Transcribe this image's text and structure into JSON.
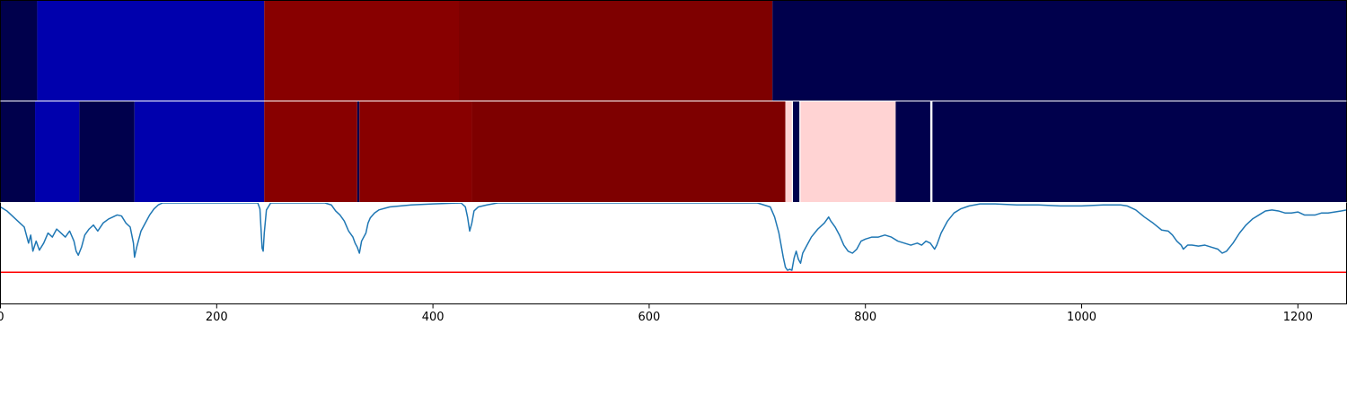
{
  "chart_data": {
    "type": "heatmap",
    "x_axis": {
      "xlim": [
        0,
        1245
      ],
      "ticks": [
        0,
        200,
        400,
        600,
        800,
        1000,
        1200
      ],
      "tick_labels": [
        "0",
        "200",
        "400",
        "600",
        "800",
        "1000",
        "1200"
      ]
    },
    "segment_rows": [
      {
        "segments": [
          {
            "start": 0,
            "end": 34,
            "color": "#00004c"
          },
          {
            "start": 34,
            "end": 244,
            "color": "#0000ad"
          },
          {
            "start": 244,
            "end": 424,
            "color": "#880000"
          },
          {
            "start": 424,
            "end": 714,
            "color": "#7e0000"
          },
          {
            "start": 714,
            "end": 1245,
            "color": "#00004c"
          }
        ]
      },
      {
        "segments": [
          {
            "start": 0,
            "end": 32,
            "color": "#00004c"
          },
          {
            "start": 32,
            "end": 73,
            "color": "#0000ad"
          },
          {
            "start": 73,
            "end": 124,
            "color": "#00004c"
          },
          {
            "start": 124,
            "end": 244,
            "color": "#0000ad"
          },
          {
            "start": 244,
            "end": 330,
            "color": "#880000"
          },
          {
            "start": 330,
            "end": 332,
            "color": "#00004c"
          },
          {
            "start": 332,
            "end": 436,
            "color": "#880000"
          },
          {
            "start": 436,
            "end": 726,
            "color": "#7e0000"
          },
          {
            "start": 726,
            "end": 732,
            "color": "#ffd3d3"
          },
          {
            "start": 732,
            "end": 733,
            "color": "#ffffff"
          },
          {
            "start": 733,
            "end": 739,
            "color": "#00004c"
          },
          {
            "start": 739,
            "end": 740,
            "color": "#ffffff"
          },
          {
            "start": 740,
            "end": 828,
            "color": "#ffd3d3"
          },
          {
            "start": 828,
            "end": 860,
            "color": "#00004c"
          },
          {
            "start": 860,
            "end": 862,
            "color": "#ffffff"
          },
          {
            "start": 862,
            "end": 1245,
            "color": "#00004c"
          }
        ]
      }
    ],
    "line_panel": {
      "ylim": [
        0,
        1
      ],
      "threshold": {
        "value": 0.31,
        "color": "#ff0000"
      },
      "series_color": "#1f77b4",
      "points": [
        [
          0,
          0.96
        ],
        [
          6,
          0.92
        ],
        [
          12,
          0.86
        ],
        [
          18,
          0.8
        ],
        [
          22,
          0.76
        ],
        [
          26,
          0.6
        ],
        [
          28,
          0.68
        ],
        [
          30,
          0.52
        ],
        [
          33,
          0.62
        ],
        [
          36,
          0.53
        ],
        [
          40,
          0.6
        ],
        [
          44,
          0.7
        ],
        [
          48,
          0.66
        ],
        [
          52,
          0.74
        ],
        [
          56,
          0.7
        ],
        [
          60,
          0.66
        ],
        [
          64,
          0.72
        ],
        [
          68,
          0.62
        ],
        [
          70,
          0.52
        ],
        [
          72,
          0.48
        ],
        [
          75,
          0.56
        ],
        [
          78,
          0.68
        ],
        [
          82,
          0.74
        ],
        [
          86,
          0.78
        ],
        [
          90,
          0.72
        ],
        [
          95,
          0.8
        ],
        [
          100,
          0.84
        ],
        [
          104,
          0.86
        ],
        [
          108,
          0.88
        ],
        [
          112,
          0.87
        ],
        [
          116,
          0.8
        ],
        [
          120,
          0.76
        ],
        [
          123,
          0.6
        ],
        [
          124,
          0.46
        ],
        [
          126,
          0.56
        ],
        [
          130,
          0.72
        ],
        [
          134,
          0.8
        ],
        [
          138,
          0.88
        ],
        [
          142,
          0.94
        ],
        [
          146,
          0.98
        ],
        [
          150,
          1.0
        ],
        [
          200,
          1.0
        ],
        [
          238,
          1.0
        ],
        [
          240,
          0.94
        ],
        [
          242,
          0.55
        ],
        [
          243,
          0.52
        ],
        [
          244,
          0.7
        ],
        [
          246,
          0.93
        ],
        [
          250,
          1.0
        ],
        [
          300,
          1.0
        ],
        [
          306,
          0.98
        ],
        [
          310,
          0.92
        ],
        [
          314,
          0.88
        ],
        [
          318,
          0.82
        ],
        [
          322,
          0.72
        ],
        [
          326,
          0.66
        ],
        [
          328,
          0.6
        ],
        [
          330,
          0.56
        ],
        [
          332,
          0.5
        ],
        [
          334,
          0.62
        ],
        [
          338,
          0.7
        ],
        [
          340,
          0.8
        ],
        [
          342,
          0.85
        ],
        [
          346,
          0.9
        ],
        [
          350,
          0.93
        ],
        [
          360,
          0.96
        ],
        [
          380,
          0.98
        ],
        [
          400,
          0.99
        ],
        [
          426,
          1.0
        ],
        [
          430,
          0.96
        ],
        [
          432,
          0.86
        ],
        [
          434,
          0.72
        ],
        [
          436,
          0.8
        ],
        [
          438,
          0.92
        ],
        [
          442,
          0.96
        ],
        [
          450,
          0.98
        ],
        [
          460,
          1.0
        ],
        [
          600,
          1.0
        ],
        [
          700,
          1.0
        ],
        [
          712,
          0.96
        ],
        [
          716,
          0.86
        ],
        [
          720,
          0.7
        ],
        [
          722,
          0.58
        ],
        [
          724,
          0.46
        ],
        [
          726,
          0.36
        ],
        [
          728,
          0.33
        ],
        [
          730,
          0.34
        ],
        [
          732,
          0.33
        ],
        [
          734,
          0.45
        ],
        [
          736,
          0.52
        ],
        [
          738,
          0.44
        ],
        [
          740,
          0.4
        ],
        [
          742,
          0.5
        ],
        [
          746,
          0.58
        ],
        [
          750,
          0.66
        ],
        [
          756,
          0.74
        ],
        [
          762,
          0.8
        ],
        [
          766,
          0.86
        ],
        [
          768,
          0.82
        ],
        [
          772,
          0.76
        ],
        [
          776,
          0.68
        ],
        [
          780,
          0.58
        ],
        [
          784,
          0.52
        ],
        [
          788,
          0.5
        ],
        [
          792,
          0.54
        ],
        [
          796,
          0.62
        ],
        [
          800,
          0.64
        ],
        [
          806,
          0.66
        ],
        [
          812,
          0.66
        ],
        [
          818,
          0.68
        ],
        [
          824,
          0.66
        ],
        [
          830,
          0.62
        ],
        [
          836,
          0.6
        ],
        [
          842,
          0.58
        ],
        [
          848,
          0.6
        ],
        [
          852,
          0.58
        ],
        [
          856,
          0.62
        ],
        [
          860,
          0.6
        ],
        [
          864,
          0.54
        ],
        [
          866,
          0.58
        ],
        [
          870,
          0.7
        ],
        [
          876,
          0.82
        ],
        [
          882,
          0.9
        ],
        [
          888,
          0.94
        ],
        [
          896,
          0.97
        ],
        [
          906,
          0.99
        ],
        [
          920,
          0.99
        ],
        [
          940,
          0.98
        ],
        [
          960,
          0.98
        ],
        [
          980,
          0.97
        ],
        [
          1000,
          0.97
        ],
        [
          1020,
          0.98
        ],
        [
          1036,
          0.98
        ],
        [
          1042,
          0.97
        ],
        [
          1050,
          0.93
        ],
        [
          1058,
          0.86
        ],
        [
          1066,
          0.8
        ],
        [
          1074,
          0.73
        ],
        [
          1080,
          0.72
        ],
        [
          1084,
          0.68
        ],
        [
          1088,
          0.62
        ],
        [
          1092,
          0.58
        ],
        [
          1094,
          0.54
        ],
        [
          1098,
          0.58
        ],
        [
          1102,
          0.58
        ],
        [
          1108,
          0.57
        ],
        [
          1114,
          0.58
        ],
        [
          1120,
          0.56
        ],
        [
          1126,
          0.54
        ],
        [
          1130,
          0.5
        ],
        [
          1134,
          0.52
        ],
        [
          1140,
          0.6
        ],
        [
          1146,
          0.7
        ],
        [
          1152,
          0.78
        ],
        [
          1158,
          0.84
        ],
        [
          1164,
          0.88
        ],
        [
          1170,
          0.92
        ],
        [
          1176,
          0.93
        ],
        [
          1182,
          0.92
        ],
        [
          1188,
          0.9
        ],
        [
          1194,
          0.9
        ],
        [
          1200,
          0.91
        ],
        [
          1206,
          0.88
        ],
        [
          1210,
          0.88
        ],
        [
          1216,
          0.88
        ],
        [
          1222,
          0.9
        ],
        [
          1228,
          0.9
        ],
        [
          1234,
          0.91
        ],
        [
          1240,
          0.92
        ],
        [
          1245,
          0.93
        ]
      ]
    }
  }
}
